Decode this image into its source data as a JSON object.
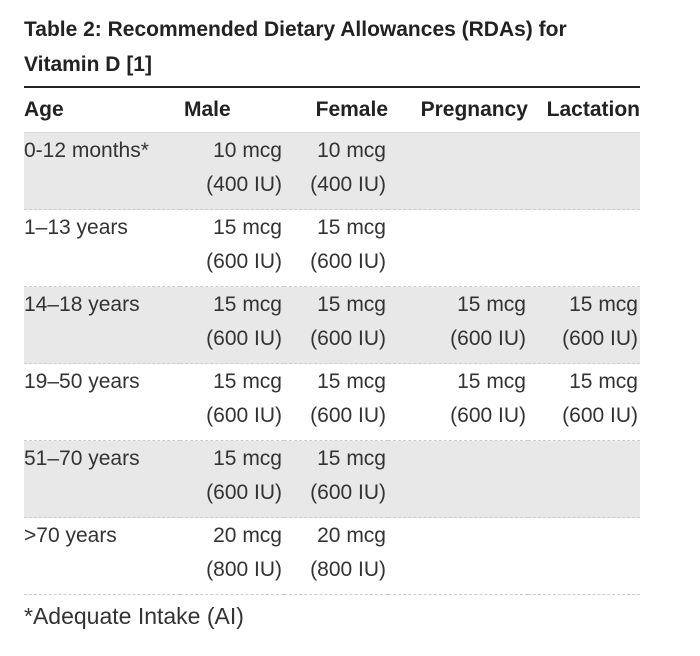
{
  "caption": {
    "text": "Table 2: Recommended Dietary Allowances (RDAs) for Vitamin D",
    "ref": "[1]"
  },
  "columns": [
    "Age",
    "Male",
    "Female",
    "Pregnancy",
    "Lactation"
  ],
  "rows": [
    {
      "age": "0-12 months*",
      "male": [
        "10 mcg",
        "(400 IU)"
      ],
      "female": [
        "10 mcg",
        "(400 IU)"
      ],
      "pregnancy": [
        "",
        ""
      ],
      "lactation": [
        "",
        ""
      ]
    },
    {
      "age": "1–13 years",
      "male": [
        "15 mcg",
        "(600 IU)"
      ],
      "female": [
        "15 mcg",
        "(600 IU)"
      ],
      "pregnancy": [
        "",
        ""
      ],
      "lactation": [
        "",
        ""
      ]
    },
    {
      "age": "14–18 years",
      "male": [
        "15 mcg",
        "(600 IU)"
      ],
      "female": [
        "15 mcg",
        "(600 IU)"
      ],
      "pregnancy": [
        "15 mcg",
        "(600 IU)"
      ],
      "lactation": [
        "15 mcg",
        "(600 IU)"
      ]
    },
    {
      "age": "19–50 years",
      "male": [
        "15 mcg",
        "(600 IU)"
      ],
      "female": [
        "15 mcg",
        "(600 IU)"
      ],
      "pregnancy": [
        "15 mcg",
        "(600 IU)"
      ],
      "lactation": [
        "15 mcg",
        "(600 IU)"
      ]
    },
    {
      "age": "51–70 years",
      "male": [
        "15 mcg",
        "(600 IU)"
      ],
      "female": [
        "15 mcg",
        "(600 IU)"
      ],
      "pregnancy": [
        "",
        ""
      ],
      "lactation": [
        "",
        ""
      ]
    },
    {
      "age": ">70 years",
      "male": [
        "20 mcg",
        "(800 IU)"
      ],
      "female": [
        "20 mcg",
        "(800 IU)"
      ],
      "pregnancy": [
        "",
        ""
      ],
      "lactation": [
        "",
        ""
      ]
    }
  ],
  "footnote": "*Adequate Intake (AI)",
  "colors": {
    "shaded_row": "#e8e8e8",
    "text": "#333333",
    "heading": "#222222"
  }
}
